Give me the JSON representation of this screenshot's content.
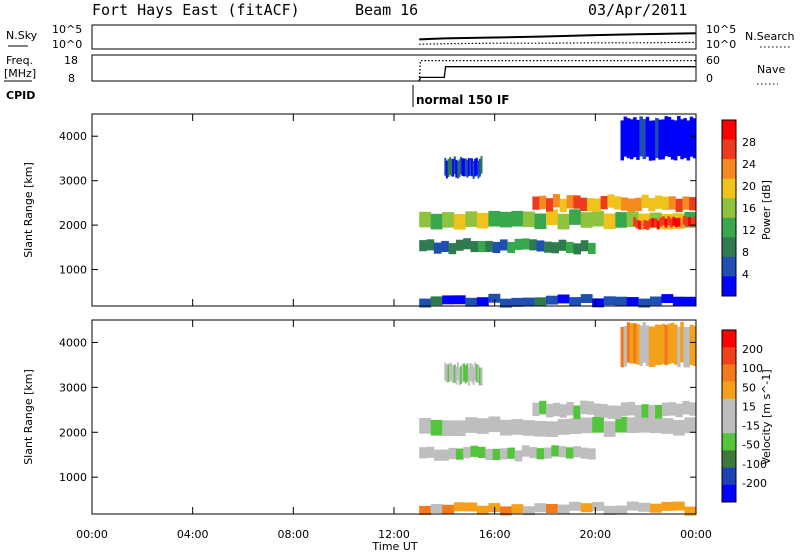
{
  "header": {
    "radar": "Fort Hays East (fitACF)",
    "beam": "Beam 16",
    "date": "03/Apr/2011"
  },
  "noise_panel": {
    "left_label": "N.Sky",
    "left_ticks": [
      "10^5",
      "10^0"
    ],
    "right_ticks": [
      "10^5",
      "10^0"
    ],
    "right_label": "N.Search"
  },
  "freq_panel": {
    "left_label_1": "Freq.",
    "left_label_2": "[MHz]",
    "left_ticks": [
      "18",
      "8"
    ],
    "right_ticks": [
      "60",
      "0"
    ],
    "right_label": "Nave"
  },
  "cpid": {
    "label": "CPID",
    "mode": "normal 150 IF"
  },
  "colors": {
    "power_scale": [
      "#0000ff",
      "#1f4fb0",
      "#2f7a4f",
      "#39a84c",
      "#8fc23f",
      "#f0c21c",
      "#f58a1f",
      "#ee3b1d",
      "#ff0000"
    ],
    "velocity_scale": [
      "#0000ff",
      "#1a43b5",
      "#3c7a39",
      "#53c53b",
      "#bebebe",
      "#bebebe",
      "#f5a01a",
      "#f37a1c",
      "#f0421b",
      "#ff0000"
    ],
    "ground_scatter": "#bebebe"
  },
  "chart_data": [
    {
      "type": "line",
      "name": "noise",
      "x_ticks": [
        "00:00",
        "04:00",
        "08:00",
        "12:00",
        "16:00",
        "20:00",
        "00:00"
      ],
      "xlim": [
        0,
        24
      ],
      "series": [
        {
          "name": "N.Sky",
          "style": "solid",
          "x": [
            13,
            14,
            16,
            18,
            20,
            22,
            24
          ],
          "values": [
            2.0,
            2.2,
            2.4,
            2.6,
            2.9,
            3.1,
            3.3
          ]
        },
        {
          "name": "N.Search",
          "style": "dotted",
          "x": [
            13,
            14,
            16,
            18,
            20,
            22,
            24
          ],
          "values": [
            1.0,
            1.1,
            1.2,
            1.2,
            1.3,
            1.3,
            1.4
          ]
        }
      ]
    },
    {
      "type": "line",
      "name": "frequency",
      "xlim": [
        0,
        24
      ],
      "series": [
        {
          "name": "Freq.",
          "style": "solid",
          "ylim": [
            8,
            18
          ],
          "x": [
            13,
            13.05,
            14.0,
            14.05,
            24
          ],
          "values": [
            8,
            9.4,
            9.4,
            13.5,
            13.5
          ]
        },
        {
          "name": "Nave",
          "style": "dotted",
          "ylim": [
            0,
            60
          ],
          "x": [
            13,
            13.05,
            24
          ],
          "values": [
            0,
            47,
            47
          ]
        }
      ]
    },
    {
      "type": "heatmap",
      "name": "power",
      "xlabel": "",
      "ylabel": "Slant Range [km]",
      "xlim": [
        0,
        24
      ],
      "ylim": [
        180,
        4500
      ],
      "y_ticks": [
        1000,
        2000,
        3000,
        4000
      ],
      "colorbar_label": "Power [dB]",
      "colorbar_ticks": [
        "28",
        "24",
        "20",
        "16",
        "12",
        "8",
        "4"
      ],
      "bands": [
        {
          "t": [
            13.0,
            24.0
          ],
          "r": [
            1950,
            2300
          ],
          "level": 4
        },
        {
          "t": [
            13.0,
            20.0
          ],
          "r": [
            1400,
            1650
          ],
          "level": 2
        },
        {
          "t": [
            17.5,
            24.0
          ],
          "r": [
            2350,
            2650
          ],
          "level": 6
        },
        {
          "t": [
            21.5,
            24.0
          ],
          "r": [
            1950,
            2150
          ],
          "level": 7
        },
        {
          "t": [
            13.0,
            24.0
          ],
          "r": [
            200,
            400
          ],
          "level": 1
        },
        {
          "t": [
            21.0,
            24.0
          ],
          "r": [
            3500,
            4400
          ],
          "level": 0
        },
        {
          "t": [
            14.0,
            15.5
          ],
          "r": [
            3100,
            3500
          ],
          "level": 1
        }
      ]
    },
    {
      "type": "heatmap",
      "name": "velocity",
      "xlabel": "Time UT",
      "ylabel": "Slant Range [km]",
      "xlim": [
        0,
        24
      ],
      "ylim": [
        180,
        4500
      ],
      "y_ticks": [
        1000,
        2000,
        3000,
        4000
      ],
      "colorbar_label": "Velocity [m s^-1]",
      "colorbar_ticks": [
        "200",
        "100",
        "50",
        "15",
        "-15",
        "-50",
        "-100",
        "-200"
      ],
      "bands": [
        {
          "t": [
            13.0,
            24.0
          ],
          "r": [
            1950,
            2300
          ],
          "level": 4
        },
        {
          "t": [
            13.0,
            20.0
          ],
          "r": [
            1400,
            1650
          ],
          "level": 4
        },
        {
          "t": [
            17.5,
            24.0
          ],
          "r": [
            2350,
            2650
          ],
          "level": 4
        },
        {
          "t": [
            13.0,
            24.0
          ],
          "r": [
            200,
            400
          ],
          "level": 6
        },
        {
          "t": [
            21.0,
            24.0
          ],
          "r": [
            3500,
            4400
          ],
          "level": 6
        },
        {
          "t": [
            14.0,
            15.5
          ],
          "r": [
            3100,
            3500
          ],
          "level": 4
        }
      ]
    }
  ]
}
